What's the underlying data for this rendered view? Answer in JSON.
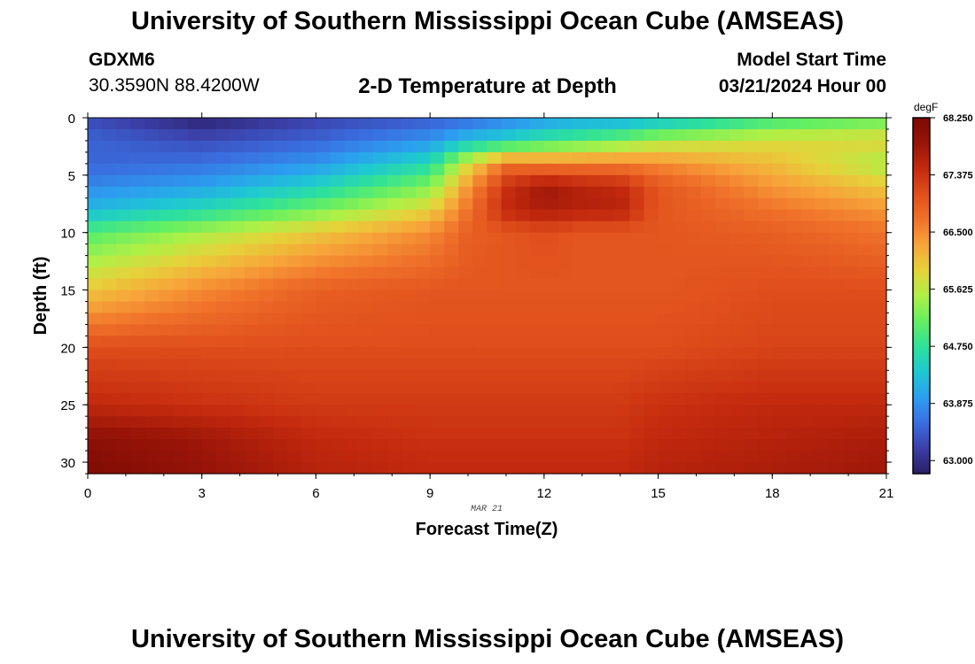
{
  "header": {
    "title": "University of Southern Mississippi Ocean Cube (AMSEAS)",
    "station": "GDXM6",
    "coords": "30.3590N  88.4200W",
    "plot_title": "2-D Temperature at Depth",
    "start_label": "Model Start Time",
    "start_value": "03/21/2024 Hour 00"
  },
  "footer": {
    "title": "University of Southern Mississippi Ocean Cube (AMSEAS)"
  },
  "chart_data": {
    "type": "heatmap",
    "title": "2-D Temperature at Depth",
    "xlabel": "Forecast Time(Z)",
    "ylabel": "Depth (ft)",
    "x_ticks": [
      "0",
      "3",
      "6",
      "9",
      "12",
      "15",
      "18",
      "21"
    ],
    "y_ticks": [
      "0",
      "5",
      "10",
      "15",
      "20",
      "25",
      "30"
    ],
    "xlim": [
      0,
      21
    ],
    "ylim": [
      0,
      31
    ],
    "date_annotation": "MAR 21",
    "colorbar": {
      "units": "degF",
      "labels": [
        "68.250",
        "67.375",
        "66.500",
        "65.625",
        "64.750",
        "63.875",
        "63.000"
      ],
      "range": [
        62.8,
        68.25
      ]
    },
    "x_hours": [
      0,
      3,
      6,
      9,
      10,
      11,
      12,
      13,
      14,
      15,
      18,
      21
    ],
    "depths_ft": [
      0,
      2,
      4,
      6,
      8,
      10,
      15,
      20,
      25,
      28,
      31
    ],
    "temperature_degF": [
      [
        63.3,
        62.85,
        63.2,
        63.4,
        63.5,
        63.7,
        63.9,
        64.0,
        64.0,
        64.2,
        64.8,
        65.1
      ],
      [
        63.5,
        63.3,
        63.5,
        63.9,
        64.3,
        64.5,
        64.8,
        65.0,
        65.2,
        65.5,
        65.8,
        65.9
      ],
      [
        63.5,
        63.6,
        63.9,
        64.6,
        65.8,
        66.7,
        66.6,
        66.6,
        66.6,
        66.5,
        66.1,
        65.5
      ],
      [
        63.8,
        64.0,
        64.5,
        65.3,
        66.4,
        67.4,
        67.8,
        67.6,
        67.5,
        67.0,
        66.4,
        66.0
      ],
      [
        64.2,
        64.6,
        65.2,
        65.9,
        66.7,
        67.5,
        67.7,
        67.6,
        67.6,
        67.0,
        66.7,
        66.4
      ],
      [
        65.0,
        65.5,
        66.0,
        66.5,
        66.9,
        67.0,
        67.1,
        67.0,
        67.0,
        67.0,
        66.9,
        66.7
      ],
      [
        66.0,
        66.5,
        66.9,
        67.0,
        67.0,
        67.0,
        67.0,
        67.0,
        67.0,
        67.0,
        67.1,
        67.1
      ],
      [
        67.1,
        67.1,
        67.1,
        67.1,
        67.1,
        67.1,
        67.1,
        67.1,
        67.1,
        67.1,
        67.2,
        67.2
      ],
      [
        67.5,
        67.4,
        67.3,
        67.3,
        67.3,
        67.3,
        67.3,
        67.3,
        67.3,
        67.4,
        67.5,
        67.5
      ],
      [
        68.0,
        67.8,
        67.5,
        67.4,
        67.4,
        67.4,
        67.4,
        67.4,
        67.4,
        67.5,
        67.6,
        67.7
      ],
      [
        68.2,
        67.9,
        67.6,
        67.5,
        67.5,
        67.5,
        67.5,
        67.5,
        67.5,
        67.6,
        67.7,
        67.8
      ]
    ]
  },
  "colors": {
    "palette": [
      "#2a1e64",
      "#3c3fa8",
      "#3a6ee0",
      "#2c9ef0",
      "#1ec8d2",
      "#2ee19a",
      "#66ef62",
      "#aef046",
      "#e6d23a",
      "#f7a43a",
      "#f0722a",
      "#e04f1c",
      "#c42a0e",
      "#981408",
      "#7a0a04"
    ]
  }
}
